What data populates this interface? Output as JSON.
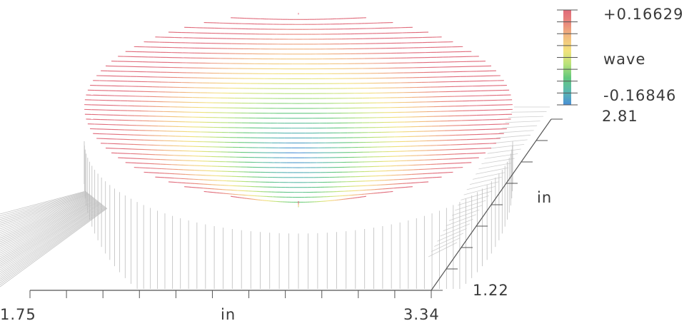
{
  "chart_data": {
    "type": "surface",
    "title": "",
    "x_axis": {
      "label": "in",
      "min": 1.75,
      "max": 3.34,
      "min_label": "1.75",
      "max_label": "3.34"
    },
    "y_axis": {
      "label": "in",
      "min": 1.22,
      "max": 2.81,
      "min_label": "1.22",
      "max_label": "2.81"
    },
    "z_scale": {
      "label": "wave",
      "max": 0.16629,
      "min": -0.16846,
      "max_label": "+0.16629",
      "min_label": "-0.16846",
      "colors": [
        "#e06a7a",
        "#e98a7c",
        "#f2be7f",
        "#f2e27c",
        "#b9e27a",
        "#64c97d",
        "#5bb8b0",
        "#4a8fd6"
      ]
    },
    "surface": {
      "shape": "circular aperture",
      "description": "figure of aperture; ordering: lowest near center-back (blue), higher at rim (red)",
      "contour_levels": 40
    }
  }
}
